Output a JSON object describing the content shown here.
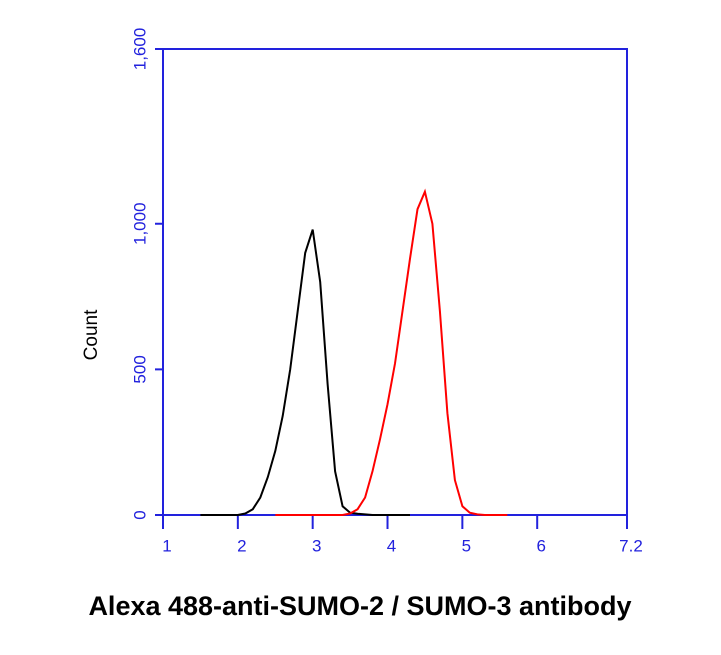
{
  "chart_data": {
    "type": "line",
    "title": "Alexa 488-anti-SUMO-2 / SUMO-3 antibody",
    "ylabel": "Count",
    "xlim": [
      1,
      7.2
    ],
    "ylim": [
      0,
      1600
    ],
    "xticks": [
      1,
      2,
      3,
      4,
      5,
      6,
      7.2
    ],
    "yticks": [
      0,
      500,
      {
        "value": 1000,
        "label": "1,000"
      },
      {
        "value": 1600,
        "label": "1,600"
      }
    ],
    "axis_color": "#2222dd",
    "series": [
      {
        "color": "#000000",
        "x": [
          1.5,
          1.6,
          1.7,
          1.8,
          1.9,
          2.0,
          2.1,
          2.2,
          2.3,
          2.4,
          2.5,
          2.6,
          2.7,
          2.8,
          2.9,
          3.0,
          3.1,
          3.2,
          3.3,
          3.4,
          3.5,
          3.6,
          3.7,
          3.8,
          3.9,
          4.0,
          4.1,
          4.2,
          4.3
        ],
        "values": [
          0,
          0,
          0,
          0,
          0,
          0,
          5,
          20,
          60,
          130,
          220,
          340,
          500,
          700,
          900,
          980,
          800,
          450,
          150,
          30,
          8,
          4,
          2,
          0,
          0,
          0,
          0,
          0,
          0
        ]
      },
      {
        "color": "#ff0000",
        "x": [
          2.5,
          2.6,
          2.7,
          2.8,
          2.9,
          3.0,
          3.1,
          3.2,
          3.3,
          3.4,
          3.5,
          3.6,
          3.7,
          3.8,
          3.9,
          4.0,
          4.1,
          4.2,
          4.3,
          4.4,
          4.5,
          4.6,
          4.7,
          4.8,
          4.9,
          5.0,
          5.1,
          5.2,
          5.3,
          5.4,
          5.5,
          5.6
        ],
        "values": [
          0,
          0,
          0,
          0,
          0,
          0,
          0,
          0,
          0,
          0,
          5,
          20,
          60,
          150,
          260,
          380,
          520,
          700,
          880,
          1050,
          1110,
          1000,
          700,
          350,
          120,
          30,
          8,
          2,
          0,
          0,
          0,
          0
        ]
      }
    ]
  }
}
